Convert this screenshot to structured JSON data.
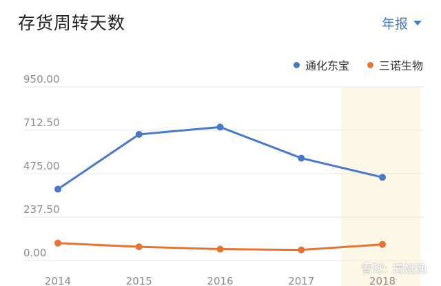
{
  "header": {
    "title": "存货周转天数",
    "period_label": "年报"
  },
  "watermark": "雪球: 清婉渔",
  "colors": {
    "series1": "#4a78c8",
    "series2": "#e57334",
    "highlight": "#fdf8e6",
    "grid": "#e6e6e6",
    "axis_text": "#8c8c8c"
  },
  "chart_data": {
    "type": "line",
    "categories": [
      "2014",
      "2015",
      "2016",
      "2017",
      "2018"
    ],
    "series": [
      {
        "name": "通化东宝",
        "values": [
          390,
          690,
          730,
          560,
          455
        ]
      },
      {
        "name": "三诺生物",
        "values": [
          95,
          75,
          62,
          58,
          88
        ]
      }
    ],
    "yticks": [
      "0.00",
      "237.50",
      "475.00",
      "712.50",
      "950.00"
    ],
    "ylim": [
      0,
      950
    ],
    "highlight_category": "2018",
    "legend_position": "top-right",
    "grid": true
  }
}
